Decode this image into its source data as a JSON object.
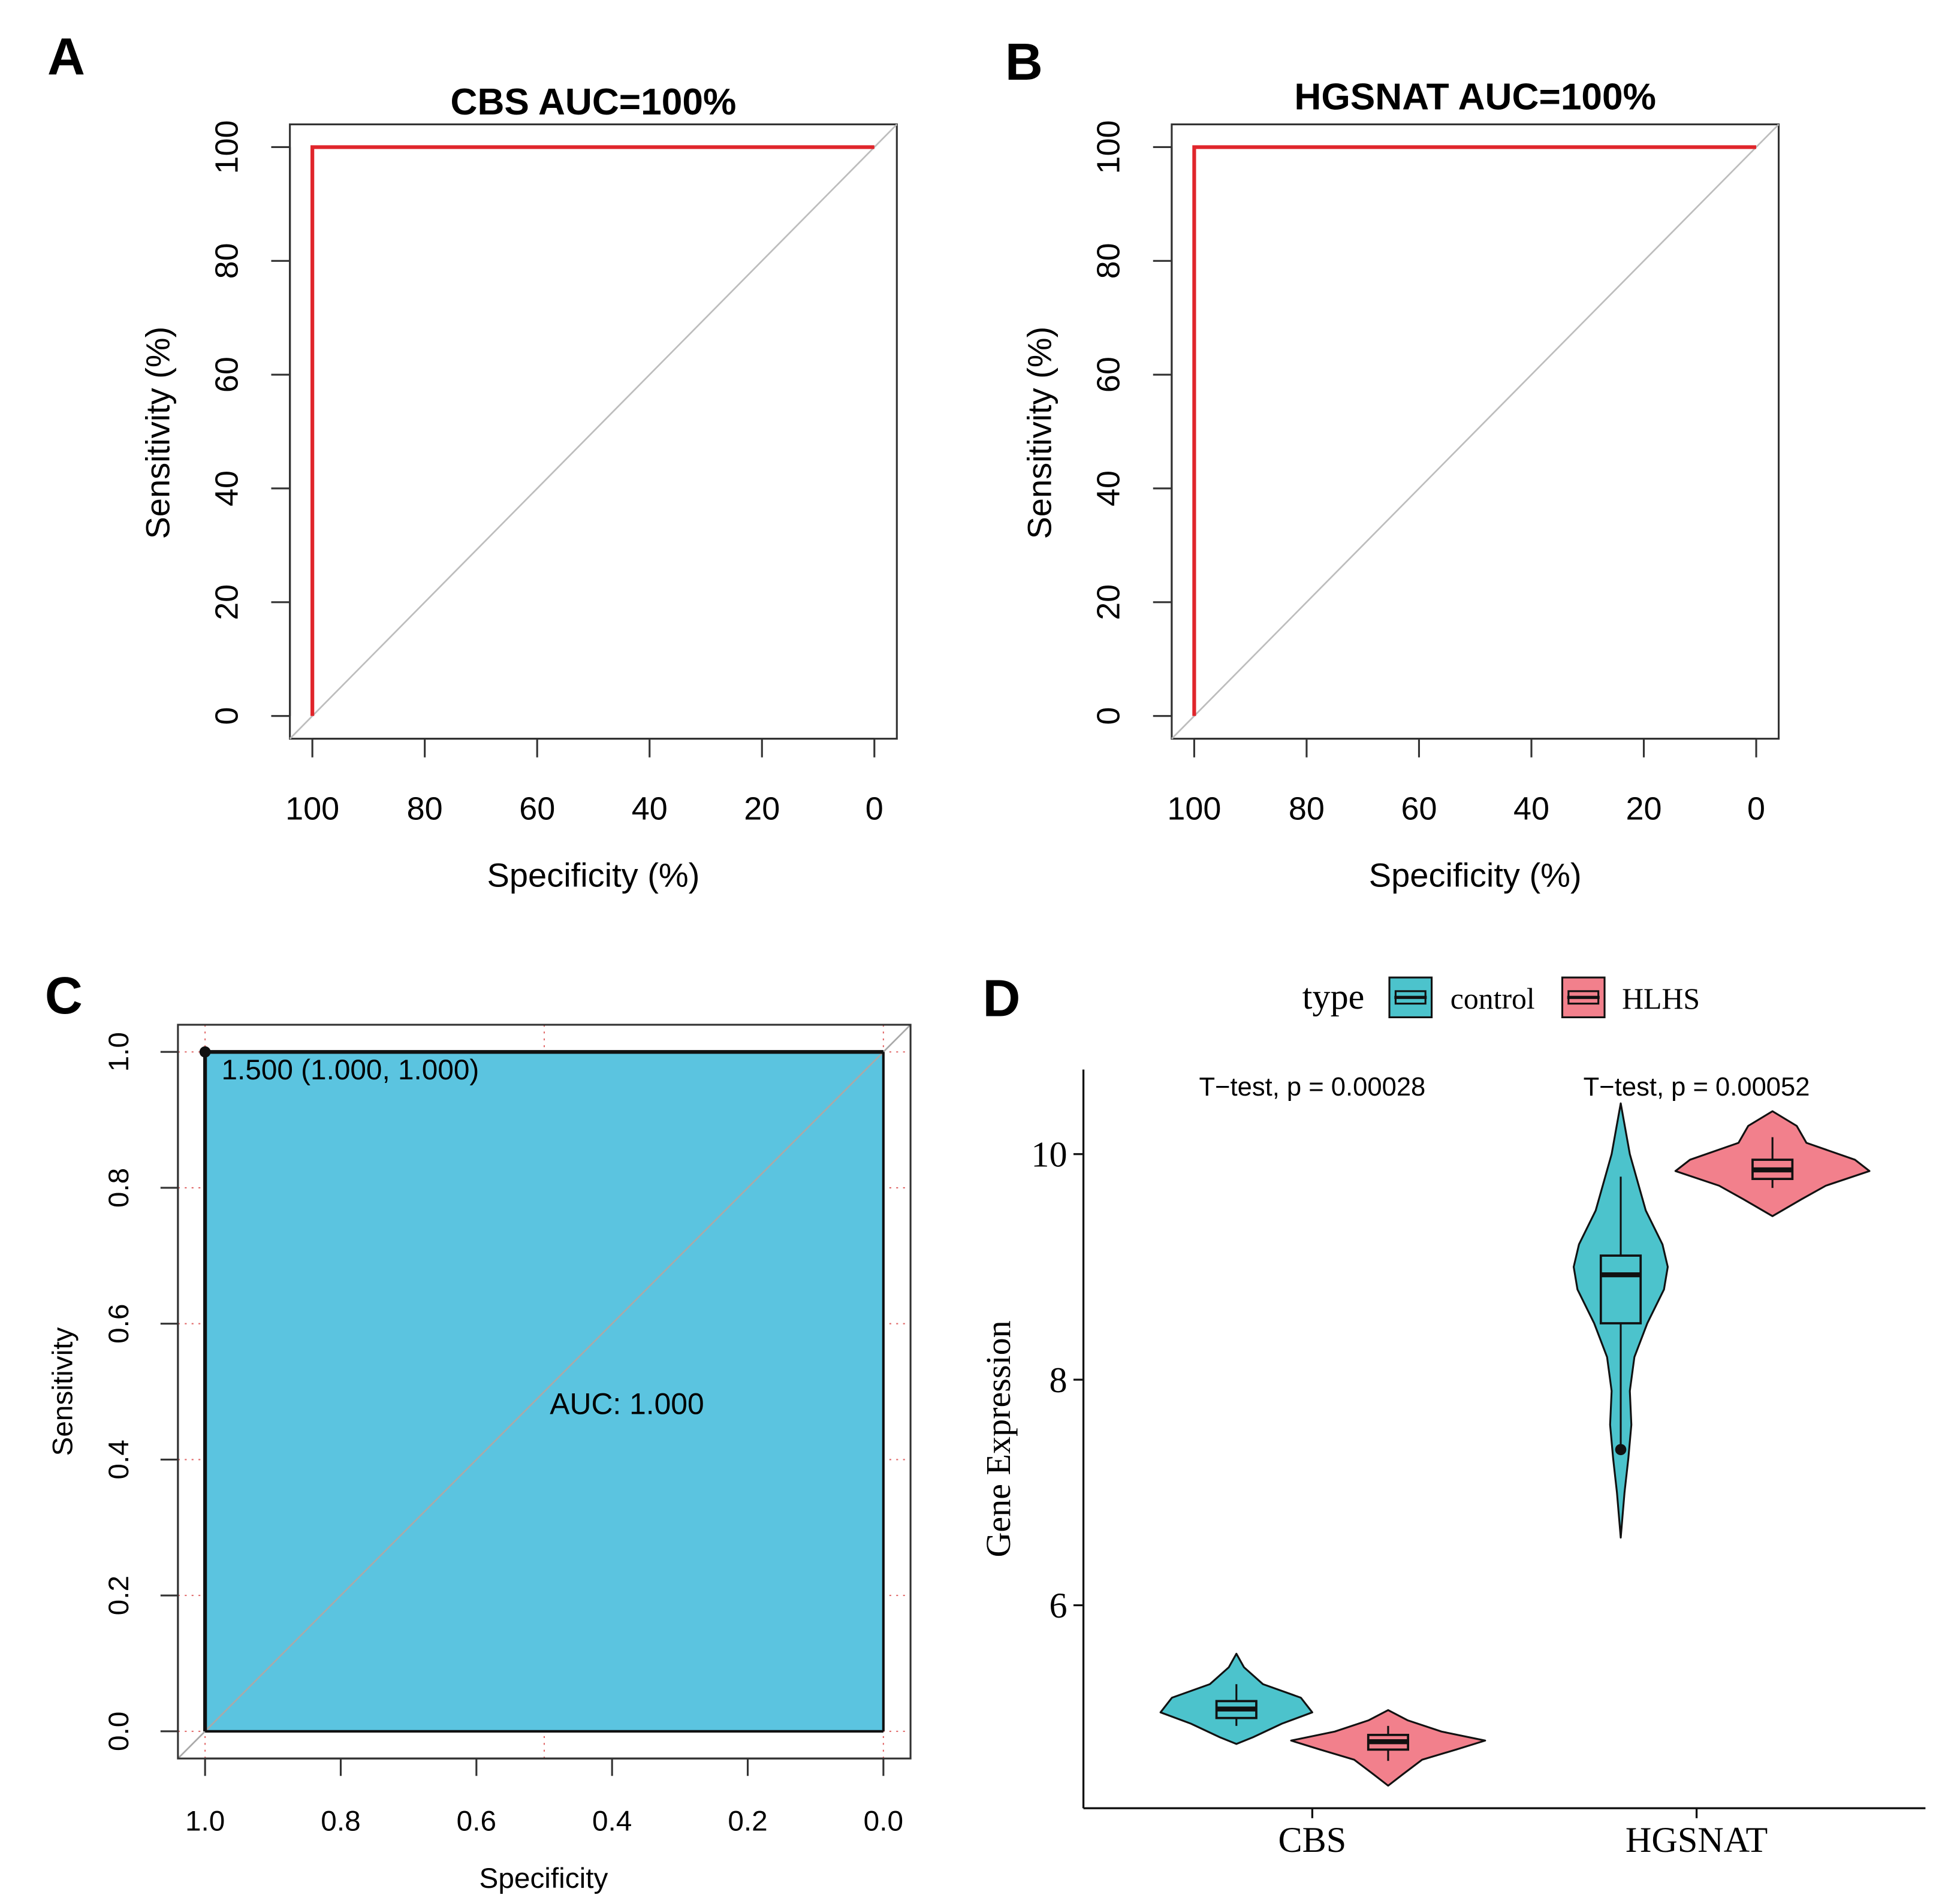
{
  "figure": {
    "panel_labels": [
      "A",
      "B",
      "C",
      "D"
    ]
  },
  "colors": {
    "roc_line": "#e0252b",
    "diagonal": "#bdbdbd",
    "auc_fill": "#5bc4e0",
    "control": "#4cc3cc",
    "hlhs": "#f2808c",
    "threshold_grid": "#e06666"
  },
  "chart_data": [
    {
      "panel": "A",
      "type": "line",
      "title": "CBS AUC=100%",
      "xlabel": "Specificity (%)",
      "ylabel": "Sensitivity (%)",
      "xlim": [
        104,
        -4
      ],
      "ylim": [
        -4,
        104
      ],
      "x_ticks": [
        100,
        80,
        60,
        40,
        20,
        0
      ],
      "y_ticks": [
        0,
        20,
        40,
        60,
        80,
        100
      ],
      "series": [
        {
          "name": "ROC",
          "x": [
            100,
            100,
            0
          ],
          "y": [
            0,
            100,
            100
          ]
        }
      ],
      "reference_line": {
        "x": [
          104,
          -4
        ],
        "y": [
          -4,
          104
        ]
      }
    },
    {
      "panel": "B",
      "type": "line",
      "title": "HGSNAT AUC=100%",
      "xlabel": "Specificity (%)",
      "ylabel": "Sensitivity (%)",
      "xlim": [
        104,
        -4
      ],
      "ylim": [
        -4,
        104
      ],
      "x_ticks": [
        100,
        80,
        60,
        40,
        20,
        0
      ],
      "y_ticks": [
        0,
        20,
        40,
        60,
        80,
        100
      ],
      "series": [
        {
          "name": "ROC",
          "x": [
            100,
            100,
            0
          ],
          "y": [
            0,
            100,
            100
          ]
        }
      ],
      "reference_line": {
        "x": [
          104,
          -4
        ],
        "y": [
          -4,
          104
        ]
      }
    },
    {
      "panel": "C",
      "type": "area",
      "title": "",
      "xlabel": "Specificity",
      "ylabel": "Sensitivity",
      "xlim": [
        1.04,
        -0.04
      ],
      "ylim": [
        -0.04,
        1.04
      ],
      "x_ticks": [
        "1.0",
        "0.8",
        "0.6",
        "0.4",
        "0.2",
        "0.0"
      ],
      "y_ticks": [
        "0.0",
        "0.2",
        "0.4",
        "0.6",
        "0.8",
        "1.0"
      ],
      "series": [
        {
          "name": "ROC",
          "x": [
            1.0,
            1.0,
            0.0
          ],
          "y": [
            0.0,
            1.0,
            1.0
          ]
        }
      ],
      "threshold_point": {
        "x": 1.0,
        "y": 1.0,
        "label": "1.500 (1.000, 1.000)"
      },
      "auc_label": "AUC: 1.000"
    },
    {
      "panel": "D",
      "type": "violin",
      "title": "",
      "xlabel": "",
      "ylabel": "Gene Expression",
      "ylim": [
        4.2,
        10.75
      ],
      "y_ticks": [
        6,
        8,
        10
      ],
      "categories": [
        "CBS",
        "HGSNAT"
      ],
      "legend": {
        "title": "type",
        "position": "top",
        "entries": [
          {
            "name": "control",
            "color": "#4cc3cc"
          },
          {
            "name": "HLHS",
            "color": "#f2808c"
          }
        ]
      },
      "annotations": [
        {
          "category": "CBS",
          "text": "T−test, p = 0.00028"
        },
        {
          "category": "HGSNAT",
          "text": "T−test, p = 0.00052"
        }
      ],
      "series": [
        {
          "name": "control",
          "groups": [
            {
              "category": "CBS",
              "box": {
                "min": 4.93,
                "q1": 5.0,
                "median": 5.08,
                "q3": 5.15,
                "max": 5.3
              },
              "violin": [
                [
                  5.57,
                  0.0
                ],
                [
                  5.45,
                  0.1
                ],
                [
                  5.3,
                  0.35
                ],
                [
                  5.18,
                  0.85
                ],
                [
                  5.05,
                  1.0
                ],
                [
                  4.95,
                  0.6
                ],
                [
                  4.83,
                  0.22
                ],
                [
                  4.77,
                  0.0
                ]
              ],
              "outliers": []
            },
            {
              "category": "HGSNAT",
              "box": {
                "min": 7.4,
                "q1": 8.5,
                "median": 8.93,
                "q3": 9.1,
                "max": 9.8
              },
              "violin": [
                [
                  10.45,
                  0.0
                ],
                [
                  10.0,
                  0.12
                ],
                [
                  9.5,
                  0.33
                ],
                [
                  9.2,
                  0.55
                ],
                [
                  9.0,
                  0.62
                ],
                [
                  8.8,
                  0.57
                ],
                [
                  8.5,
                  0.35
                ],
                [
                  8.2,
                  0.18
                ],
                [
                  7.9,
                  0.12
                ],
                [
                  7.6,
                  0.14
                ],
                [
                  7.3,
                  0.1
                ],
                [
                  7.0,
                  0.05
                ],
                [
                  6.6,
                  0.0
                ]
              ],
              "outliers": [
                7.38
              ]
            }
          ]
        },
        {
          "name": "HLHS",
          "groups": [
            {
              "category": "CBS",
              "box": {
                "min": 4.62,
                "q1": 4.72,
                "median": 4.79,
                "q3": 4.85,
                "max": 4.93
              },
              "violin": [
                [
                  5.07,
                  0.0
                ],
                [
                  4.98,
                  0.2
                ],
                [
                  4.88,
                  0.55
                ],
                [
                  4.8,
                  1.0
                ],
                [
                  4.72,
                  0.7
                ],
                [
                  4.63,
                  0.35
                ],
                [
                  4.5,
                  0.15
                ],
                [
                  4.4,
                  0.0
                ]
              ],
              "outliers": []
            },
            {
              "category": "HGSNAT",
              "box": {
                "min": 9.7,
                "q1": 9.78,
                "median": 9.86,
                "q3": 9.95,
                "max": 10.15
              },
              "violin": [
                [
                  10.38,
                  0.0
                ],
                [
                  10.25,
                  0.25
                ],
                [
                  10.1,
                  0.35
                ],
                [
                  9.95,
                  0.85
                ],
                [
                  9.85,
                  1.0
                ],
                [
                  9.72,
                  0.55
                ],
                [
                  9.6,
                  0.3
                ],
                [
                  9.45,
                  0.0
                ]
              ],
              "outliers": []
            }
          ]
        }
      ]
    }
  ]
}
